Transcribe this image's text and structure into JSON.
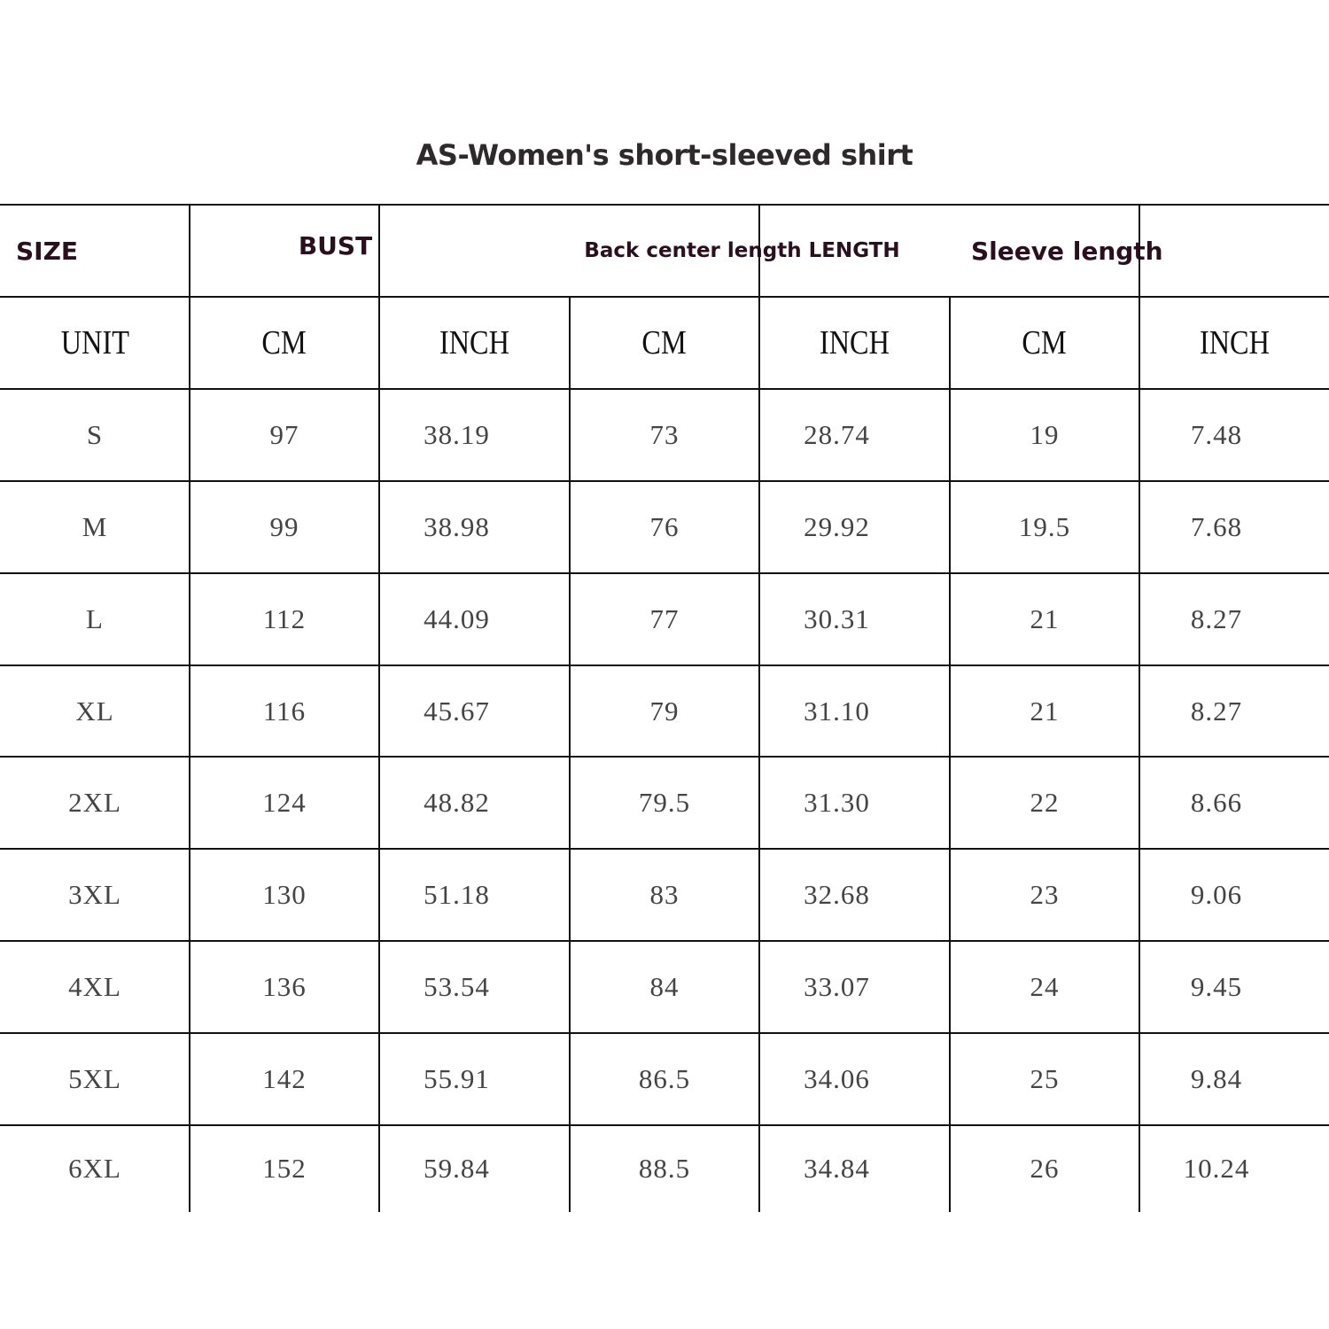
{
  "title": "AS-Women's short-sleeved shirt",
  "group_headers": [
    "SIZE",
    "BUST",
    "Back center length LENGTH",
    "Sleeve length"
  ],
  "unit_row": [
    "UNIT",
    "CM",
    "INCH",
    "CM",
    "INCH",
    "CM",
    "INCH"
  ],
  "rows": [
    [
      "S",
      "97",
      "38.19",
      "73",
      "28.74",
      "19",
      "7.48"
    ],
    [
      "M",
      "99",
      "38.98",
      "76",
      "29.92",
      "19.5",
      "7.68"
    ],
    [
      "L",
      "112",
      "44.09",
      "77",
      "30.31",
      "21",
      "8.27"
    ],
    [
      "XL",
      "116",
      "45.67",
      "79",
      "31.10",
      "21",
      "8.27"
    ],
    [
      "2XL",
      "124",
      "48.82",
      "79.5",
      "31.30",
      "22",
      "8.66"
    ],
    [
      "3XL",
      "130",
      "51.18",
      "83",
      "32.68",
      "23",
      "9.06"
    ],
    [
      "4XL",
      "136",
      "53.54",
      "84",
      "33.07",
      "24",
      "9.45"
    ],
    [
      "5XL",
      "142",
      "55.91",
      "86.5",
      "34.06",
      "25",
      "9.84"
    ],
    [
      "6XL",
      "152",
      "59.84",
      "88.5",
      "34.84",
      "26",
      "10.24"
    ]
  ],
  "colors": {
    "header_text": "#2a0f1f",
    "value_text": "#444444",
    "grid": "#111111"
  }
}
